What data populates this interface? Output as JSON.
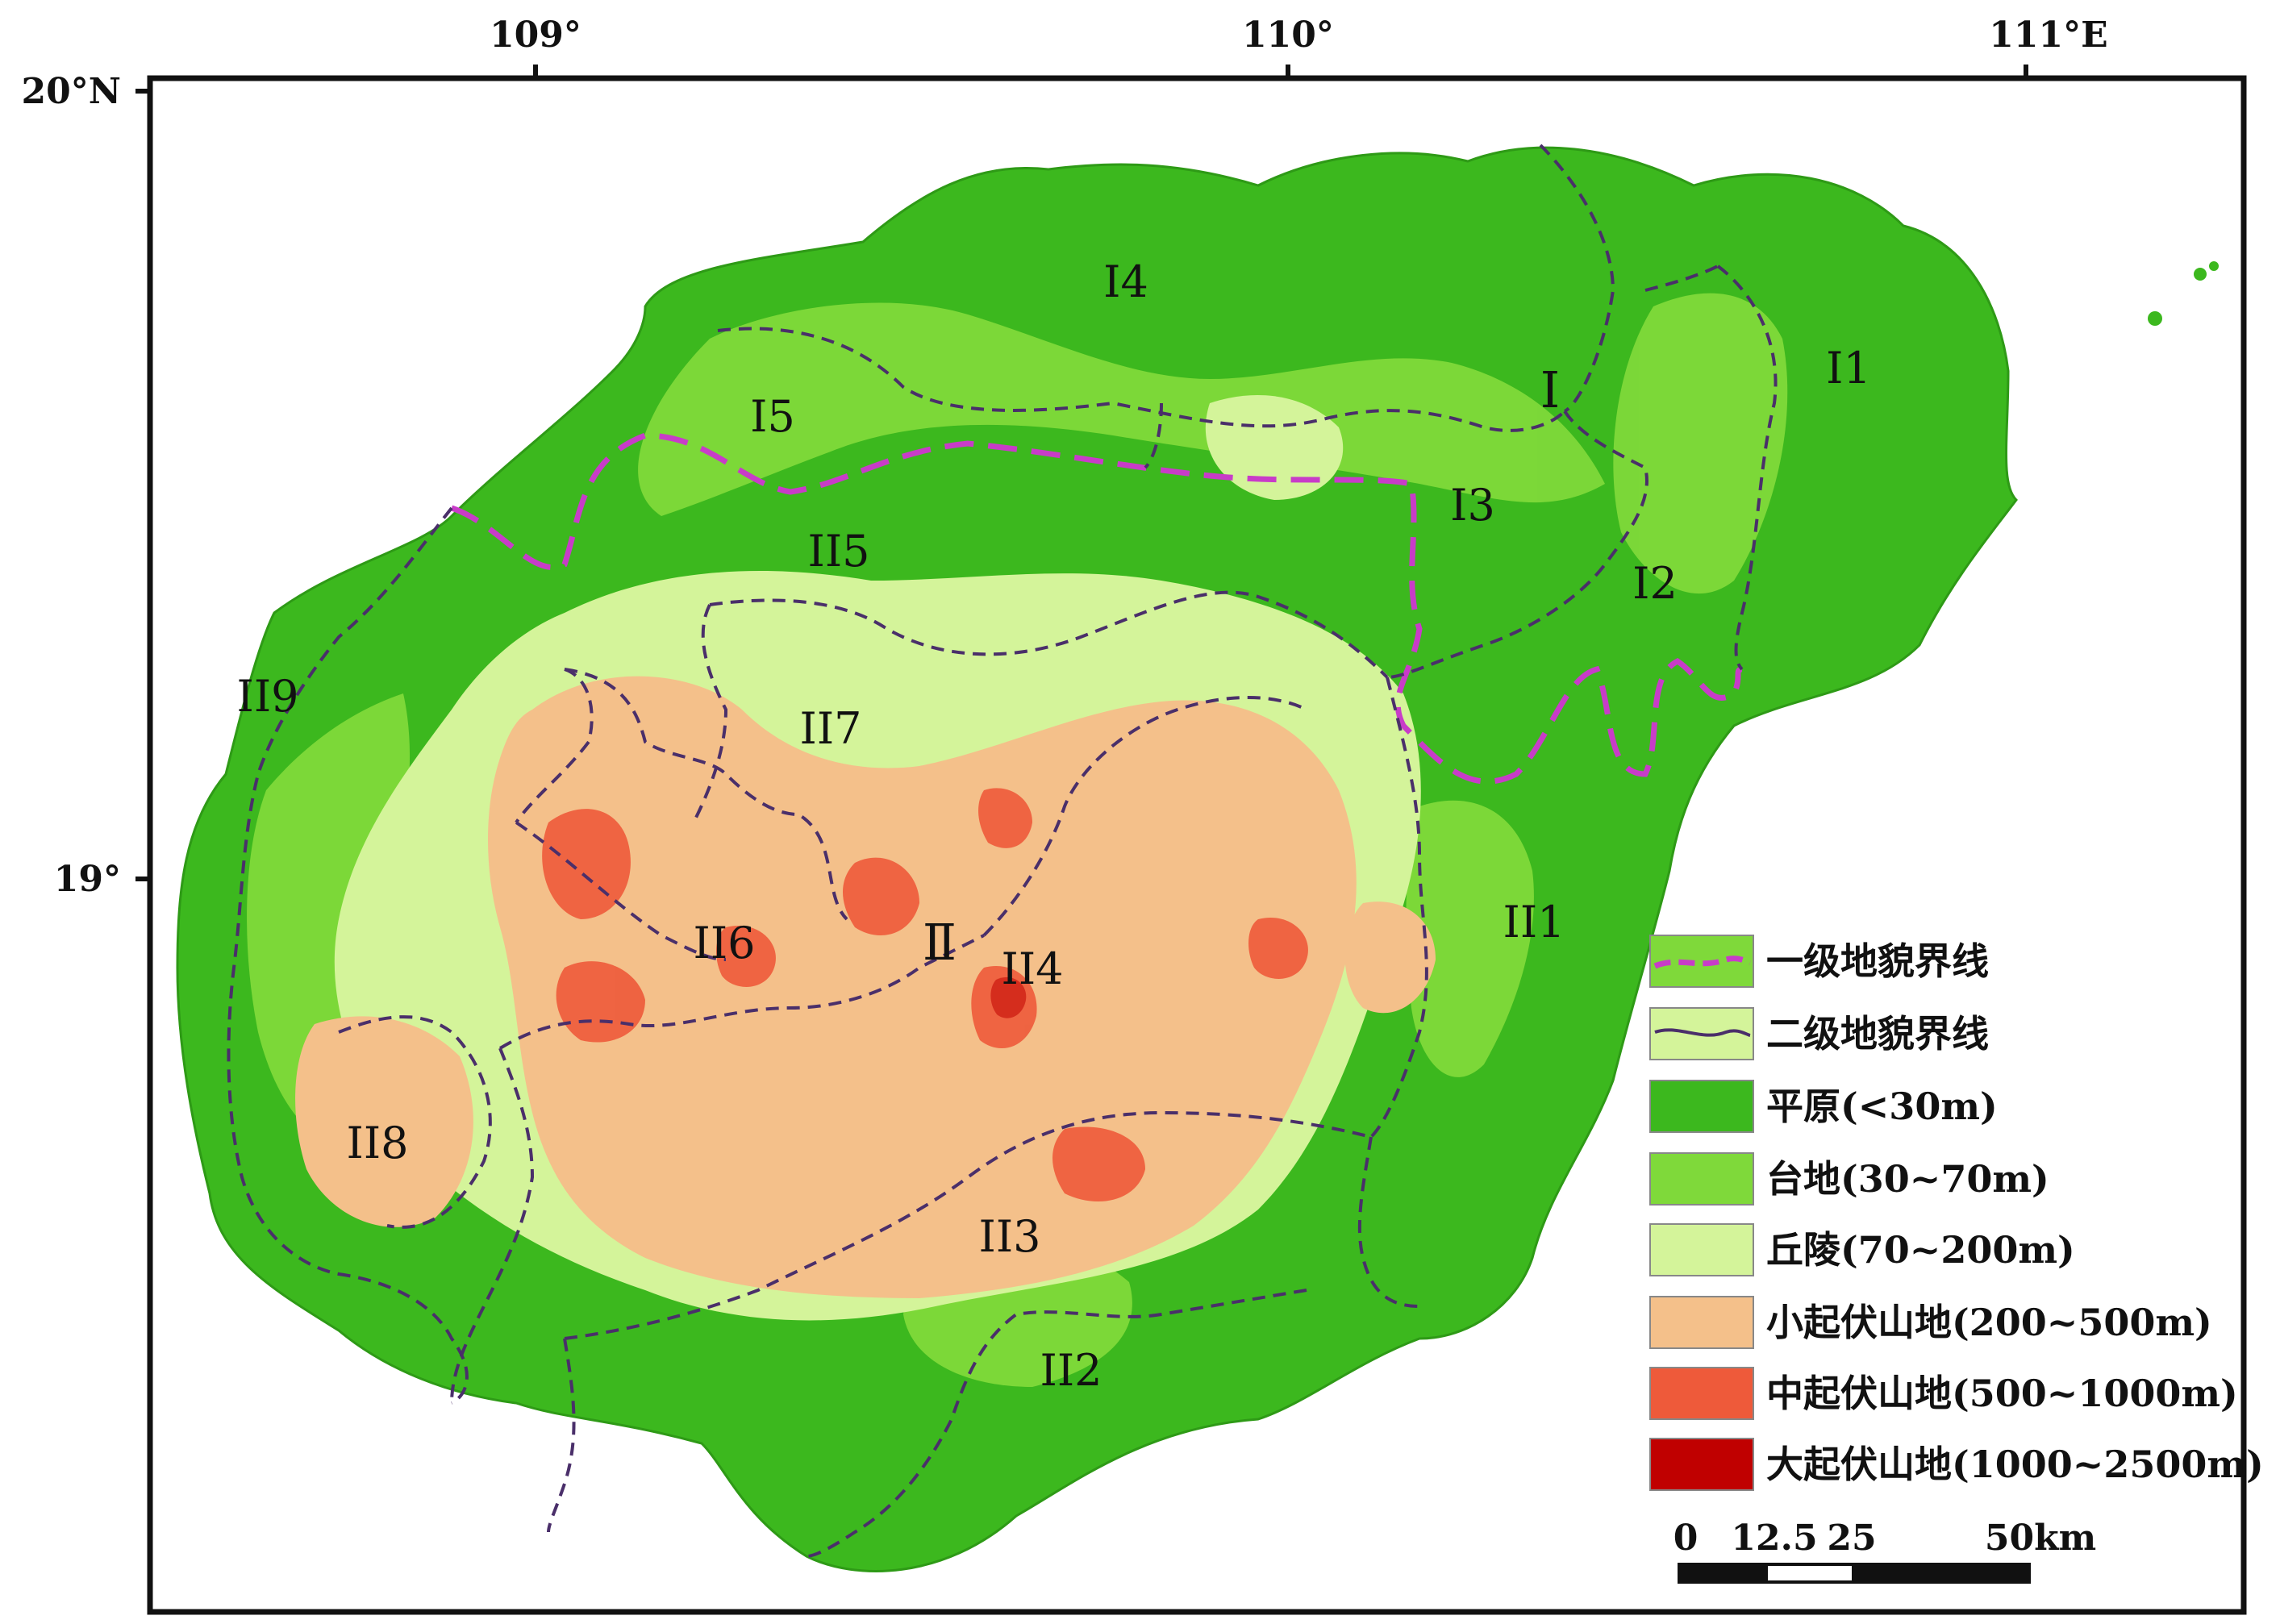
{
  "axes": {
    "lon_ticks": [
      "109°",
      "110°",
      "111°E"
    ],
    "lat_ticks": [
      "20°N",
      "19°"
    ]
  },
  "regions": {
    "I": "Ⅰ",
    "II": "Ⅱ",
    "I1": "I1",
    "I2": "I2",
    "I3": "I3",
    "I4": "I4",
    "I5": "I5",
    "II1": "II1",
    "II2": "II2",
    "II3": "II3",
    "II4": "II4",
    "II5": "II5",
    "II6": "II6",
    "II7": "II7",
    "II8": "II8",
    "II9": "II9"
  },
  "legend": {
    "items": [
      {
        "label": "一级地貌界线",
        "kind": "line",
        "line_color": "#c83cc8"
      },
      {
        "label": "二级地貌界线",
        "kind": "line",
        "line_color": "#4a2f6a"
      },
      {
        "label": "平原(<30m)",
        "kind": "fill",
        "color": "#3cb81e"
      },
      {
        "label": "台地(30~70m)",
        "kind": "fill",
        "color": "#7fd93a"
      },
      {
        "label": "丘陵(70~200m)",
        "kind": "fill",
        "color": "#d4f49a"
      },
      {
        "label": "小起伏山地(200~500m)",
        "kind": "fill",
        "color": "#f4c08a"
      },
      {
        "label": "中起伏山地(500~1000m)",
        "kind": "fill",
        "color": "#ee5a3a"
      },
      {
        "label": "大起伏山地(1000~2500m)",
        "kind": "fill",
        "color": "#c00000"
      }
    ]
  },
  "scale_bar": {
    "t0": "0",
    "t1": "12.5",
    "t2": "25",
    "t3": "50km"
  }
}
